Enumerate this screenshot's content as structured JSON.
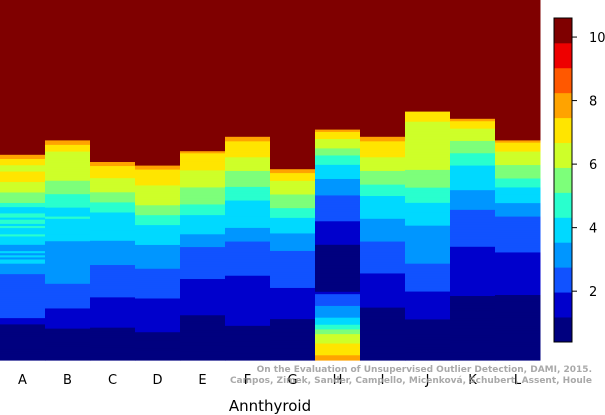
{
  "chart_data": {
    "type": "heatmap",
    "title": "",
    "xlabel": "Annthyroid",
    "categories": [
      "A",
      "B",
      "C",
      "D",
      "E",
      "F",
      "G",
      "H",
      "I",
      "J",
      "K",
      "L"
    ],
    "rows": 85,
    "value_range": [
      0.4,
      10.6
    ],
    "colorbar": {
      "ticks": [
        2,
        4,
        6,
        8,
        10
      ],
      "levels": [
        "#00007f",
        "#0000cc",
        "#1152ff",
        "#0096ff",
        "#00d9ff",
        "#29ffce",
        "#7dff7a",
        "#ceff29",
        "#ffe500",
        "#ffa300",
        "#ff5800",
        "#ee0000",
        "#7f0000"
      ]
    },
    "level_sequences": [
      "99888777888887777766666554445545545444544443334343443333322222222222222222222211100000000000000000",
      "99888777777777777766666655555544445444444444433333333333333333332222222222211111111100000000000000",
      "99888888777777766666555554444444444444433333333333322222222222222221111111111111110000000000000000",
      "99888888887777777777666665555544444444443333333333332222222222222221111111111111111100000000000000",
      "98888888877777777666666665555544444444433333322222222222222211111111111111111000000000000000000000",
      "99888888877777766666665555554444444444443333332222222222222221111111111111111111111000000000000000",
      "99888877777776666666555554444444433333333322222222222222222221111111111111111000000000000000000000",
      "98887777666555544444433333332222222222211111111110000000000000000000012222233333444556677778888899",
      "99888888877777766666655555444444444433333333332222222222222211111111111111100000000000000000000000",
      "88887777777777777777777666666655555544444444433333333333333322222222222111111111110000000000000000",
      "98887777766666555554444444444333333332222222222222221111111111111111111100000000000000000000000000",
      "98888777777666666555544444443333332222222222222222111111111111111111100000000000000000000000000000"
    ],
    "column_tops_fraction": [
      0.43,
      0.39,
      0.45,
      0.46,
      0.42,
      0.38,
      0.47,
      0.36,
      0.38,
      0.31,
      0.33,
      0.39
    ],
    "gridlines": false
  },
  "watermark": {
    "line1": "On the Evaluation of Unsupervised Outlier Detection, DAMI, 2015.",
    "line2": "Campos, Zimek, Sander, Campello, Micenková, Schubert, Assent, Houle"
  }
}
